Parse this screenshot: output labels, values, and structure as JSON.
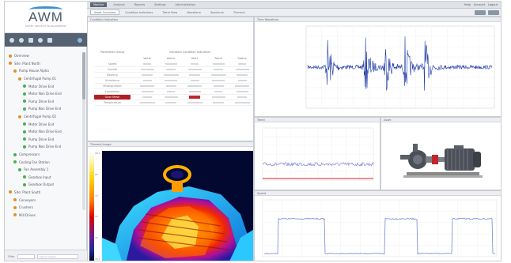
{
  "app": {
    "logo_text": "AWM",
    "logo_subtitle": "ASSET WEALTH MANAGEMENT"
  },
  "sidebar": {
    "tree": [
      {
        "label": "Overview",
        "level": 0,
        "color": "#e0902a"
      },
      {
        "label": "Site: Plant North",
        "level": 0,
        "color": "#e0902a"
      },
      {
        "label": "Pump House Alpha",
        "level": 1,
        "color": "#e0902a"
      },
      {
        "label": "Centrifugal Pump 01",
        "level": 2,
        "color": "#e0902a"
      },
      {
        "label": "Motor Drive End",
        "level": 3,
        "color": "#4caf50"
      },
      {
        "label": "Motor Non Drive End",
        "level": 3,
        "color": "#4caf50"
      },
      {
        "label": "Pump Drive End",
        "level": 3,
        "color": "#4caf50"
      },
      {
        "label": "Pump Non Drive End",
        "level": 3,
        "color": "#4caf50"
      },
      {
        "label": "Centrifugal Pump 02",
        "level": 2,
        "color": "#e0902a"
      },
      {
        "label": "Motor Drive End",
        "level": 3,
        "color": "#4caf50"
      },
      {
        "label": "Motor Non Drive End",
        "level": 3,
        "color": "#4caf50"
      },
      {
        "label": "Pump Drive End",
        "level": 3,
        "color": "#4caf50"
      },
      {
        "label": "Pump Non Drive End",
        "level": 3,
        "color": "#4caf50"
      },
      {
        "label": "Compressors",
        "level": 1,
        "color": "#4caf50"
      },
      {
        "label": "Cooling Fan Station",
        "level": 1,
        "color": "#4caf50"
      },
      {
        "label": "Fan Assembly 1",
        "level": 2,
        "color": "#4caf50"
      },
      {
        "label": "Gearbox Input",
        "level": 3,
        "color": "#4caf50"
      },
      {
        "label": "Gearbox Output",
        "level": 3,
        "color": "#4caf50"
      },
      {
        "label": "Site: Plant South",
        "level": 0,
        "color": "#e0902a"
      },
      {
        "label": "Conveyors",
        "level": 1,
        "color": "#e0902a"
      },
      {
        "label": "Crushers",
        "level": 1,
        "color": "#e0902a"
      },
      {
        "label": "Mill Drives",
        "level": 1,
        "color": "#e0902a"
      }
    ],
    "footer_left": "Filter",
    "footer_right": "Search assets"
  },
  "topbar": {
    "tabs": [
      "Monitor",
      "Analysis",
      "Reports",
      "Settings",
      "Administration"
    ],
    "active_tab": 0,
    "right": [
      "Help",
      "Account",
      "Logout"
    ]
  },
  "subbar": {
    "tabs": [
      "Asset Overview",
      "Condition Indicators",
      "Trend View",
      "Waveform",
      "Spectrum",
      "Thermal"
    ],
    "active_tab": 0
  },
  "panels": {
    "indicators_title": "Condition Indicators",
    "waveform_title": "Time Waveform",
    "trend_title": "Trend",
    "asset_title": "Asset",
    "thermal_title": "Thermal Image",
    "speed_title": "Speed"
  },
  "table": {
    "group_header": "Vibration Condition Indicators",
    "left_header": "Parameter Group",
    "columns": [
      "Value",
      "Alarm",
      "Alert",
      "Trend",
      "Status"
    ],
    "rows": [
      {
        "label": "Speed",
        "alarm": false
      },
      {
        "label": "Overall",
        "alarm": false
      },
      {
        "label": "Bearing",
        "alarm": false
      },
      {
        "label": "Unbalance",
        "alarm": false
      },
      {
        "label": "Misalignment",
        "alarm": false
      },
      {
        "label": "Looseness",
        "alarm": false
      },
      {
        "label": "Gear Mesh",
        "alarm": true
      },
      {
        "label": "Temperature",
        "alarm": false
      }
    ]
  },
  "thermal": {
    "scale_ticks": [
      "98.5",
      "85",
      "70",
      "55",
      "40",
      "25.1"
    ]
  },
  "colors": {
    "waveform": "#1f3ba8",
    "trend": "#8a8ad8",
    "trend_threshold": "#d6262c",
    "speed": "#7a86d8",
    "alarm": "#b01e23",
    "toolbar": "#556272"
  }
}
